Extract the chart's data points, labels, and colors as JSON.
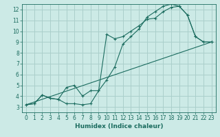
{
  "xlabel": "Humidex (Indice chaleur)",
  "bg_color": "#cceae6",
  "grid_color": "#aacfcb",
  "line_color": "#1a6b5e",
  "xlim": [
    -0.5,
    23.5
  ],
  "ylim": [
    2.5,
    12.5
  ],
  "xticks": [
    0,
    1,
    2,
    3,
    4,
    5,
    6,
    7,
    8,
    9,
    10,
    11,
    12,
    13,
    14,
    15,
    16,
    17,
    18,
    19,
    20,
    21,
    22,
    23
  ],
  "yticks": [
    3,
    4,
    5,
    6,
    7,
    8,
    9,
    10,
    11,
    12
  ],
  "line1_x": [
    0,
    1,
    2,
    3,
    4,
    5,
    6,
    7,
    8,
    9,
    10,
    11,
    12,
    13,
    14,
    15,
    16,
    17,
    18,
    19,
    20,
    21,
    22,
    23
  ],
  "line1_y": [
    3.2,
    3.3,
    4.1,
    3.8,
    3.7,
    3.3,
    3.3,
    3.2,
    3.3,
    4.5,
    9.7,
    9.3,
    9.5,
    10.0,
    10.5,
    11.1,
    11.2,
    11.8,
    12.2,
    12.3,
    11.5,
    9.5,
    9.0,
    9.0
  ],
  "line2_x": [
    0,
    1,
    2,
    3,
    4,
    5,
    6,
    7,
    8,
    9,
    10,
    11,
    12,
    13,
    14,
    15,
    16,
    17,
    18,
    19,
    20,
    21,
    22,
    23
  ],
  "line2_y": [
    3.2,
    3.3,
    4.1,
    3.8,
    3.7,
    4.8,
    5.0,
    4.0,
    4.5,
    4.5,
    5.5,
    6.7,
    8.8,
    9.5,
    10.2,
    11.3,
    11.8,
    12.3,
    12.5,
    12.3,
    11.5,
    9.5,
    9.0,
    9.0
  ],
  "line3_x": [
    0,
    23
  ],
  "line3_y": [
    3.2,
    9.0
  ]
}
